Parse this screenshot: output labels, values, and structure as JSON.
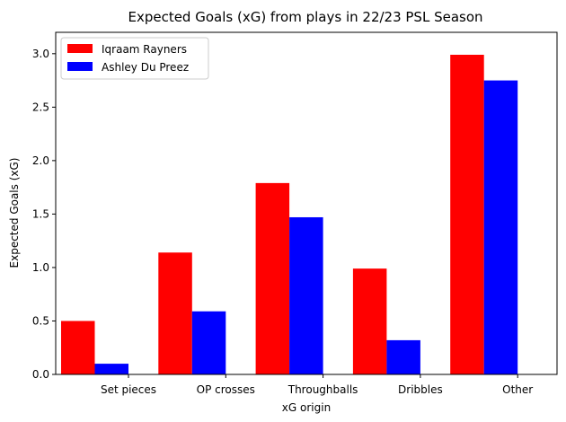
{
  "chart_data": {
    "type": "bar",
    "title": "Expected Goals (xG) from plays in 22/23 PSL Season",
    "xlabel": "xG origin",
    "ylabel": "Expected Goals (xG)",
    "categories": [
      "Set pieces",
      "OP crosses",
      "Throughballs",
      "Dribbles",
      "Other"
    ],
    "series": [
      {
        "name": "Iqraam Rayners",
        "color": "#ff0000",
        "values": [
          0.5,
          1.14,
          1.79,
          0.99,
          2.99
        ]
      },
      {
        "name": "Ashley Du Preez",
        "color": "#0000ff",
        "values": [
          0.1,
          0.59,
          1.47,
          0.32,
          2.75
        ]
      }
    ],
    "ylim": [
      0,
      3.2
    ],
    "yticks": [
      "0.0",
      "0.5",
      "1.0",
      "1.5",
      "2.0",
      "2.5",
      "3.0"
    ],
    "grid": false,
    "legend_position": "top-left"
  }
}
